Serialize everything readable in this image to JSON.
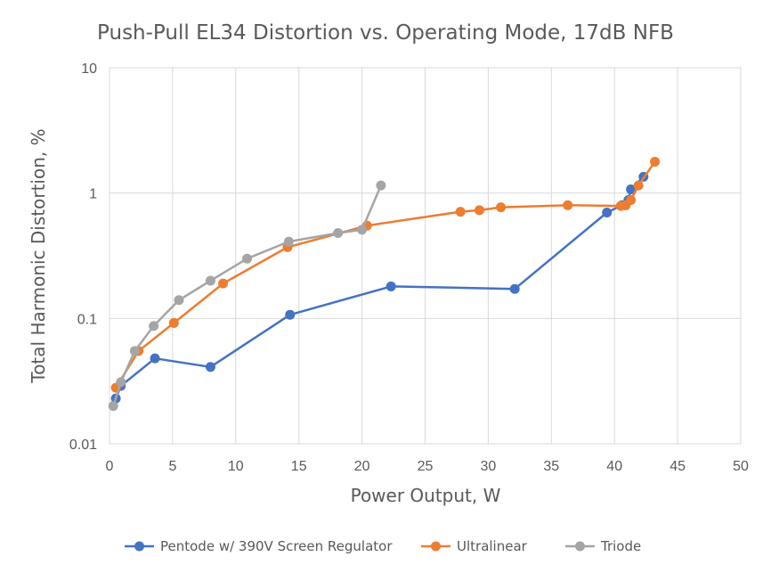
{
  "chart_data": {
    "type": "scatter",
    "title": "Push-Pull EL34 Distortion vs. Operating Mode, 17dB NFB",
    "xlabel": "Power Output, W",
    "ylabel": "Total Harmonic Distortion, %",
    "xlim": [
      0,
      50
    ],
    "ylim": [
      0.01,
      10
    ],
    "y_scale": "log",
    "x_ticks": [
      "0",
      "5",
      "10",
      "15",
      "20",
      "25",
      "30",
      "35",
      "40",
      "45",
      "50"
    ],
    "y_ticks": [
      "0.01",
      "0.1",
      "1",
      "10"
    ],
    "grid": true,
    "legend_position": "bottom",
    "series": [
      {
        "name": "Pentode w/ 390V Screen Regulator",
        "color": "#4472C4",
        "points": [
          [
            0.5,
            0.023
          ],
          [
            0.9,
            0.029
          ],
          [
            3.6,
            0.048
          ],
          [
            8.0,
            0.041
          ],
          [
            14.3,
            0.107
          ],
          [
            22.3,
            0.18
          ],
          [
            32.1,
            0.172
          ],
          [
            39.4,
            0.7
          ],
          [
            40.6,
            0.8
          ],
          [
            41.1,
            0.88
          ],
          [
            41.3,
            1.07
          ],
          [
            42.3,
            1.35
          ]
        ]
      },
      {
        "name": "Ultralinear",
        "color": "#ED7D31",
        "points": [
          [
            0.5,
            0.028
          ],
          [
            2.3,
            0.055
          ],
          [
            5.1,
            0.092
          ],
          [
            9.0,
            0.19
          ],
          [
            14.1,
            0.37
          ],
          [
            20.4,
            0.55
          ],
          [
            27.8,
            0.71
          ],
          [
            29.3,
            0.73
          ],
          [
            31.0,
            0.77
          ],
          [
            36.3,
            0.8
          ],
          [
            40.5,
            0.79
          ],
          [
            40.9,
            0.8
          ],
          [
            41.3,
            0.88
          ],
          [
            41.9,
            1.15
          ],
          [
            43.2,
            1.78
          ]
        ]
      },
      {
        "name": "Triode",
        "color": "#A5A5A5",
        "points": [
          [
            0.3,
            0.02
          ],
          [
            0.9,
            0.031
          ],
          [
            2.0,
            0.055
          ],
          [
            3.5,
            0.087
          ],
          [
            5.5,
            0.14
          ],
          [
            8.0,
            0.2
          ],
          [
            10.9,
            0.3
          ],
          [
            14.2,
            0.41
          ],
          [
            18.1,
            0.48
          ],
          [
            20.0,
            0.51
          ],
          [
            21.5,
            1.15
          ]
        ]
      }
    ]
  }
}
